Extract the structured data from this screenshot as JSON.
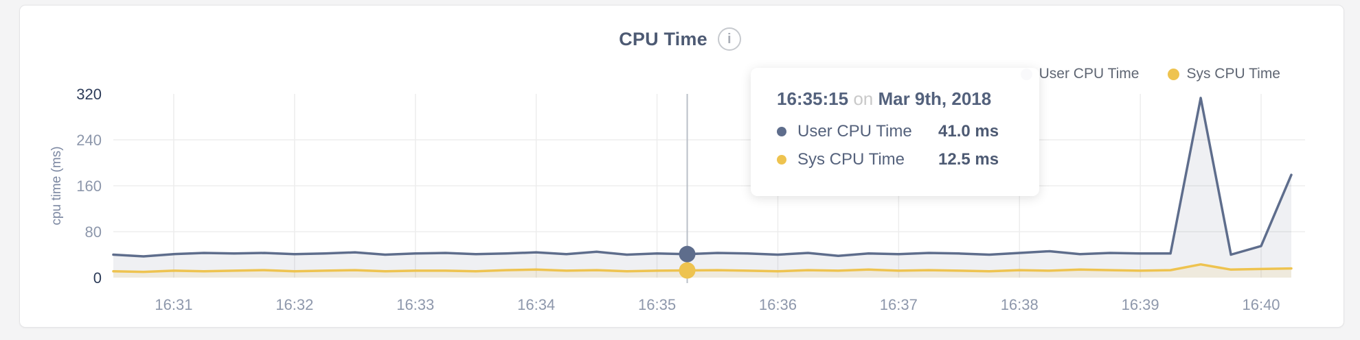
{
  "page": {
    "background": "#f4f4f5"
  },
  "card": {
    "background": "#ffffff",
    "border": "#e4e4e6"
  },
  "header": {
    "title": "CPU Time",
    "info_icon_glyph": "i"
  },
  "legend": {
    "items": [
      {
        "label": "User CPU Time",
        "color": "#5e6d8c"
      },
      {
        "label": "Sys CPU Time",
        "color": "#eec34f"
      }
    ]
  },
  "tooltip": {
    "time": "16:35:15",
    "conjunction": "on",
    "date": "Mar 9th, 2018",
    "rows": [
      {
        "label": "User CPU Time",
        "value": "41.0 ms",
        "color": "#5e6d8c"
      },
      {
        "label": "Sys CPU Time",
        "value": "12.5 ms",
        "color": "#eec34f"
      }
    ]
  },
  "chart_data": {
    "type": "area",
    "title": "CPU Time",
    "xlabel": "",
    "ylabel": "cpu time (ms)",
    "ylim": [
      0,
      320
    ],
    "yticks": [
      0,
      80,
      160,
      240,
      320
    ],
    "xticks": [
      "16:31",
      "16:32",
      "16:33",
      "16:34",
      "16:35",
      "16:36",
      "16:37",
      "16:38",
      "16:39",
      "16:40"
    ],
    "x_start": "16:30:30",
    "x_end": "16:40:15",
    "sample_interval_seconds": 15,
    "grid": true,
    "legend_position": "top-right",
    "hover": {
      "index": 19,
      "time": "16:35:15",
      "date": "Mar 9th, 2018"
    },
    "series": [
      {
        "name": "User CPU Time",
        "color": "#5e6d8c",
        "fill": "rgba(94,109,140,0.10)",
        "values": [
          40,
          37,
          41,
          43,
          42,
          43,
          41,
          42,
          44,
          40,
          42,
          43,
          41,
          42,
          44,
          41,
          45,
          40,
          42,
          41,
          43,
          42,
          40,
          43,
          38,
          42,
          41,
          43,
          42,
          40,
          43,
          46,
          41,
          43,
          42,
          42,
          313,
          40,
          55,
          179
        ]
      },
      {
        "name": "Sys CPU Time",
        "color": "#eec34f",
        "fill": "rgba(238,195,79,0.13)",
        "values": [
          11,
          10,
          12,
          11,
          12,
          13,
          11,
          12,
          13,
          11,
          12,
          12,
          11,
          13,
          14,
          12,
          13,
          11,
          12,
          12.5,
          13,
          12,
          11,
          13,
          12,
          14,
          12,
          13,
          12,
          11,
          13,
          12,
          14,
          13,
          12,
          13,
          23,
          14,
          15,
          16
        ]
      }
    ],
    "style": {
      "grid_color": "#ededed",
      "tick_color": "#8d97ab",
      "tick_color_emphasis": "#2c3b58",
      "axis_label_color": "#7b87a1",
      "crosshair_color": "#b9bfc7"
    }
  }
}
